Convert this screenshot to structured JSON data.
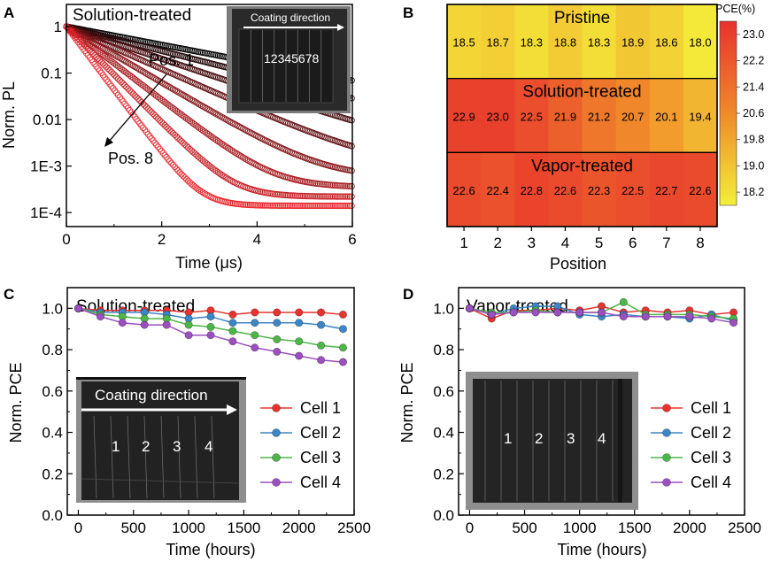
{
  "panels": {
    "A": {
      "label": "A",
      "title": "Solution-treated",
      "xlabel": "Time (μs)",
      "ylabel": "Norm. PL",
      "annotations": {
        "top": "Pos. 1",
        "bottom": "Pos. 8"
      },
      "inset": {
        "caption": "Coating direction",
        "positions": "12345678"
      }
    },
    "B": {
      "label": "B",
      "xlabel": "Position",
      "colorbar_title": "PCE(%)",
      "colorbar_ticks": [
        "23.0",
        "22.2",
        "21.4",
        "20.6",
        "19.8",
        "19.0",
        "18.2"
      ]
    },
    "C": {
      "label": "C",
      "title": "Solution-treated",
      "xlabel": "Time (hours)",
      "ylabel": "Norm. PCE",
      "inset": {
        "caption": "Coating direction",
        "cells": [
          "1",
          "2",
          "3",
          "4"
        ]
      }
    },
    "D": {
      "label": "D",
      "title": "Vapor-treated",
      "xlabel": "Time (hours)",
      "ylabel": "Norm. PCE",
      "inset": {
        "cells": [
          "1",
          "2",
          "3",
          "4"
        ]
      }
    }
  },
  "colors": {
    "cell1": "#e8332f",
    "cell2": "#3c86c6",
    "cell3": "#4db648",
    "cell4": "#9b4fc0",
    "pl_start": "#000000",
    "pl_end": "#e8242a"
  },
  "chart_data": [
    {
      "id": "A",
      "type": "scatter",
      "x_range": [
        0,
        6
      ],
      "y_scale": "log",
      "y_range": [
        5e-05,
        3
      ],
      "x_ticks": [
        "0",
        "2",
        "4",
        "6"
      ],
      "y_ticks": [
        "1",
        "0.1",
        "0.01",
        "1E-3",
        "1E-4"
      ],
      "series": [
        {
          "decay_time_us": 2.2,
          "noise_floor": 0.0035
        },
        {
          "decay_time_us": 1.65,
          "noise_floor": 0.0022
        },
        {
          "decay_time_us": 1.25,
          "noise_floor": 0.0013
        },
        {
          "decay_time_us": 0.95,
          "noise_floor": 0.00085
        },
        {
          "decay_time_us": 0.72,
          "noise_floor": 0.00055
        },
        {
          "decay_time_us": 0.55,
          "noise_floor": 0.00035
        },
        {
          "decay_time_us": 0.42,
          "noise_floor": 0.00022
        },
        {
          "decay_time_us": 0.32,
          "noise_floor": 0.00014
        }
      ]
    },
    {
      "id": "B",
      "type": "heatmap",
      "x_categories": [
        "1",
        "2",
        "3",
        "4",
        "5",
        "6",
        "7",
        "8"
      ],
      "rows": [
        {
          "name": "Pristine",
          "values": [
            18.5,
            18.7,
            18.3,
            18.8,
            18.3,
            18.9,
            18.6,
            18.0
          ]
        },
        {
          "name": "Solution-treated",
          "values": [
            22.9,
            23.0,
            22.5,
            21.9,
            21.2,
            20.7,
            20.1,
            19.4
          ]
        },
        {
          "name": "Vapor-treated",
          "values": [
            22.6,
            22.4,
            22.8,
            22.6,
            22.3,
            22.5,
            22.7,
            22.6
          ]
        }
      ],
      "value_range": [
        17.8,
        23.4
      ]
    },
    {
      "id": "C",
      "type": "line",
      "x": [
        0,
        200,
        400,
        600,
        800,
        1000,
        1200,
        1400,
        1600,
        1800,
        2000,
        2200,
        2400
      ],
      "x_ticks": [
        "0",
        "500",
        "1000",
        "1500",
        "2000",
        "2500"
      ],
      "y_ticks": [
        "0.0",
        "0.2",
        "0.4",
        "0.6",
        "0.8",
        "1.0"
      ],
      "x_range": [
        -100,
        2500
      ],
      "y_range": [
        0,
        1.1
      ],
      "legend": "right",
      "series": [
        {
          "name": "Cell 1",
          "values": [
            1.0,
            0.99,
            0.99,
            0.99,
            0.99,
            0.98,
            0.99,
            0.97,
            0.98,
            0.98,
            0.98,
            0.98,
            0.97
          ]
        },
        {
          "name": "Cell 2",
          "values": [
            1.0,
            0.98,
            0.98,
            0.98,
            0.97,
            0.95,
            0.96,
            0.93,
            0.93,
            0.93,
            0.93,
            0.92,
            0.9
          ]
        },
        {
          "name": "Cell 3",
          "values": [
            1.0,
            0.97,
            0.96,
            0.95,
            0.95,
            0.92,
            0.91,
            0.89,
            0.87,
            0.85,
            0.84,
            0.82,
            0.81
          ]
        },
        {
          "name": "Cell 4",
          "values": [
            1.0,
            0.96,
            0.93,
            0.92,
            0.92,
            0.87,
            0.87,
            0.84,
            0.81,
            0.79,
            0.77,
            0.75,
            0.74
          ]
        }
      ]
    },
    {
      "id": "D",
      "type": "line",
      "x": [
        0,
        200,
        400,
        600,
        800,
        1000,
        1200,
        1400,
        1600,
        1800,
        2000,
        2200,
        2400
      ],
      "x_ticks": [
        "0",
        "500",
        "1000",
        "1500",
        "2000",
        "2500"
      ],
      "y_ticks": [
        "0.0",
        "0.2",
        "0.4",
        "0.6",
        "0.8",
        "1.0"
      ],
      "x_range": [
        -100,
        2500
      ],
      "y_range": [
        0,
        1.1
      ],
      "legend": "right",
      "series": [
        {
          "name": "Cell 1",
          "values": [
            1.0,
            0.95,
            0.99,
            0.99,
            1.0,
            0.99,
            1.01,
            0.98,
            0.99,
            0.98,
            0.99,
            0.97,
            0.98
          ]
        },
        {
          "name": "Cell 2",
          "values": [
            1.0,
            0.97,
            1.0,
            1.01,
            1.01,
            0.97,
            0.96,
            0.97,
            0.96,
            0.96,
            0.95,
            0.97,
            0.94
          ]
        },
        {
          "name": "Cell 3",
          "values": [
            1.0,
            0.98,
            0.98,
            0.99,
            0.98,
            0.98,
            0.98,
            1.03,
            0.97,
            0.97,
            0.97,
            0.96,
            0.95
          ]
        },
        {
          "name": "Cell 4",
          "values": [
            1.0,
            0.97,
            0.98,
            0.98,
            0.98,
            0.98,
            0.98,
            0.96,
            0.96,
            0.96,
            0.96,
            0.95,
            0.93
          ]
        }
      ]
    }
  ]
}
